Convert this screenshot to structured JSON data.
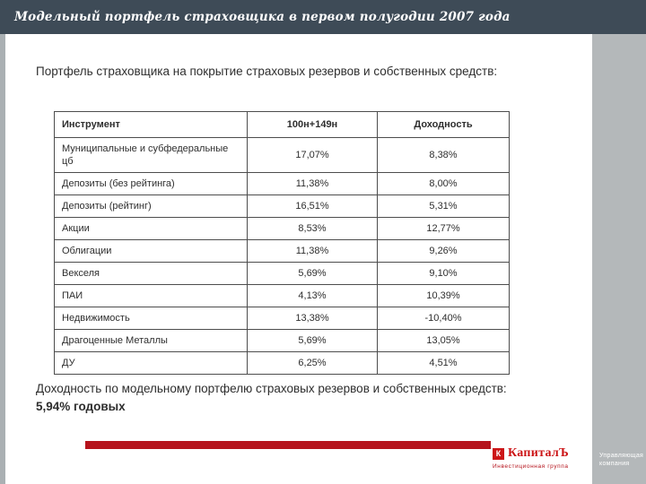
{
  "header": {
    "title": "Модельный портфель страховщика в первом полугодии 2007 года"
  },
  "intro": {
    "text": "Портфель страховщика на покрытие страховых резервов и собственных средств:"
  },
  "table": {
    "columns": {
      "instrument": "Инструмент",
      "share": "100н+149н",
      "yield": "Доходность"
    },
    "rows": [
      {
        "instrument": "Муниципальные и субфедеральные цб",
        "share": "17,07%",
        "yield": "8,38%"
      },
      {
        "instrument": "Депозиты (без рейтинга)",
        "share": "11,38%",
        "yield": "8,00%"
      },
      {
        "instrument": "Депозиты (рейтинг)",
        "share": "16,51%",
        "yield": "5,31%"
      },
      {
        "instrument": "Акции",
        "share": "8,53%",
        "yield": "12,77%"
      },
      {
        "instrument": "Облигации",
        "share": "11,38%",
        "yield": "9,26%"
      },
      {
        "instrument": "Векселя",
        "share": "5,69%",
        "yield": "9,10%"
      },
      {
        "instrument": "ПАИ",
        "share": "4,13%",
        "yield": "10,39%"
      },
      {
        "instrument": "Недвижимость",
        "share": "13,38%",
        "yield": "-10,40%"
      },
      {
        "instrument": "Драгоценные Металлы",
        "share": "5,69%",
        "yield": "13,05%"
      },
      {
        "instrument": "ДУ",
        "share": "6,25%",
        "yield": "4,51%"
      }
    ]
  },
  "summary": {
    "text": "Доходность по модельному портфелю страховых резервов и собственных средств: ",
    "value": "5,94% годовых"
  },
  "footer": {
    "logo_mark": "К",
    "logo_text": "КапиталЪ",
    "logo_subtext": "Инвестиционная группа",
    "sidebar_text": "Управляющая компания"
  },
  "colors": {
    "header_bar": "#3e4b57",
    "sidebar_gray": "#b4b8ba",
    "accent_red": "#b5121b",
    "logo_red": "#cc1517"
  }
}
